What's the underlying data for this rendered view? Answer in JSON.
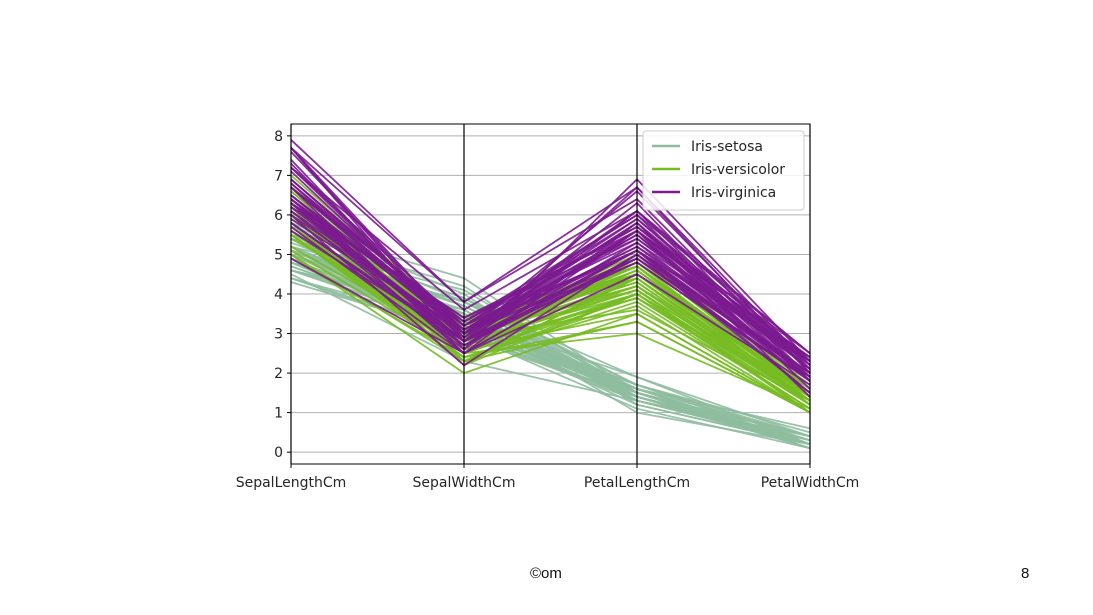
{
  "chart_data": {
    "type": "parallel-coordinates",
    "dimensions": [
      "SepalLengthCm",
      "SepalWidthCm",
      "PetalLengthCm",
      "PetalWidthCm"
    ],
    "ylim": [
      -0.3,
      8.3
    ],
    "yticks": [
      "0",
      "1",
      "2",
      "3",
      "4",
      "5",
      "6",
      "7",
      "8"
    ],
    "grid": true,
    "legend_position": "top-right",
    "series": [
      {
        "name": "Iris-setosa",
        "color": "#8fbc9f",
        "records": [
          [
            5.1,
            3.5,
            1.4,
            0.2
          ],
          [
            4.9,
            3.0,
            1.4,
            0.2
          ],
          [
            4.7,
            3.2,
            1.3,
            0.2
          ],
          [
            4.6,
            3.1,
            1.5,
            0.2
          ],
          [
            5.0,
            3.6,
            1.4,
            0.2
          ],
          [
            5.4,
            3.9,
            1.7,
            0.4
          ],
          [
            4.6,
            3.4,
            1.4,
            0.3
          ],
          [
            5.0,
            3.4,
            1.5,
            0.2
          ],
          [
            4.4,
            2.9,
            1.4,
            0.2
          ],
          [
            4.9,
            3.1,
            1.5,
            0.1
          ],
          [
            5.4,
            3.7,
            1.5,
            0.2
          ],
          [
            4.8,
            3.4,
            1.6,
            0.2
          ],
          [
            4.8,
            3.0,
            1.4,
            0.1
          ],
          [
            4.3,
            3.0,
            1.1,
            0.1
          ],
          [
            5.8,
            4.0,
            1.2,
            0.2
          ],
          [
            5.7,
            4.4,
            1.5,
            0.4
          ],
          [
            5.4,
            3.9,
            1.3,
            0.4
          ],
          [
            5.1,
            3.5,
            1.4,
            0.3
          ],
          [
            5.7,
            3.8,
            1.7,
            0.3
          ],
          [
            5.1,
            3.8,
            1.5,
            0.3
          ],
          [
            5.4,
            3.4,
            1.7,
            0.2
          ],
          [
            5.1,
            3.7,
            1.5,
            0.4
          ],
          [
            4.6,
            3.6,
            1.0,
            0.2
          ],
          [
            5.1,
            3.3,
            1.7,
            0.5
          ],
          [
            4.8,
            3.4,
            1.9,
            0.2
          ],
          [
            5.0,
            3.0,
            1.6,
            0.2
          ],
          [
            5.0,
            3.4,
            1.6,
            0.4
          ],
          [
            5.2,
            3.5,
            1.5,
            0.2
          ],
          [
            5.2,
            3.4,
            1.4,
            0.2
          ],
          [
            4.7,
            3.2,
            1.6,
            0.2
          ],
          [
            4.8,
            3.1,
            1.6,
            0.2
          ],
          [
            5.4,
            3.4,
            1.5,
            0.4
          ],
          [
            5.2,
            4.1,
            1.5,
            0.1
          ],
          [
            5.5,
            4.2,
            1.4,
            0.2
          ],
          [
            4.9,
            3.1,
            1.5,
            0.1
          ],
          [
            5.0,
            3.2,
            1.2,
            0.2
          ],
          [
            5.5,
            3.5,
            1.3,
            0.2
          ],
          [
            4.9,
            3.1,
            1.5,
            0.1
          ],
          [
            4.4,
            3.0,
            1.3,
            0.2
          ],
          [
            5.1,
            3.4,
            1.5,
            0.2
          ],
          [
            5.0,
            3.5,
            1.3,
            0.3
          ],
          [
            4.5,
            2.3,
            1.3,
            0.3
          ],
          [
            4.4,
            3.2,
            1.3,
            0.2
          ],
          [
            5.0,
            3.5,
            1.6,
            0.6
          ],
          [
            5.1,
            3.8,
            1.9,
            0.4
          ],
          [
            4.8,
            3.0,
            1.4,
            0.3
          ],
          [
            5.1,
            3.8,
            1.6,
            0.2
          ],
          [
            4.6,
            3.2,
            1.4,
            0.2
          ],
          [
            5.3,
            3.7,
            1.5,
            0.2
          ],
          [
            5.0,
            3.3,
            1.4,
            0.2
          ]
        ]
      },
      {
        "name": "Iris-versicolor",
        "color": "#77bb22",
        "records": [
          [
            7.0,
            3.2,
            4.7,
            1.4
          ],
          [
            6.4,
            3.2,
            4.5,
            1.5
          ],
          [
            6.9,
            3.1,
            4.9,
            1.5
          ],
          [
            5.5,
            2.3,
            4.0,
            1.3
          ],
          [
            6.5,
            2.8,
            4.6,
            1.5
          ],
          [
            5.7,
            2.8,
            4.5,
            1.3
          ],
          [
            6.3,
            3.3,
            4.7,
            1.6
          ],
          [
            4.9,
            2.4,
            3.3,
            1.0
          ],
          [
            6.6,
            2.9,
            4.6,
            1.3
          ],
          [
            5.2,
            2.7,
            3.9,
            1.4
          ],
          [
            5.0,
            2.0,
            3.5,
            1.0
          ],
          [
            5.9,
            3.0,
            4.2,
            1.5
          ],
          [
            6.0,
            2.2,
            4.0,
            1.0
          ],
          [
            6.1,
            2.9,
            4.7,
            1.4
          ],
          [
            5.6,
            2.9,
            3.6,
            1.3
          ],
          [
            6.7,
            3.1,
            4.4,
            1.4
          ],
          [
            5.6,
            3.0,
            4.5,
            1.5
          ],
          [
            5.8,
            2.7,
            4.1,
            1.0
          ],
          [
            6.2,
            2.2,
            4.5,
            1.5
          ],
          [
            5.6,
            2.5,
            3.9,
            1.1
          ],
          [
            5.9,
            3.2,
            4.8,
            1.8
          ],
          [
            6.1,
            2.8,
            4.0,
            1.3
          ],
          [
            6.3,
            2.5,
            4.9,
            1.5
          ],
          [
            6.1,
            2.8,
            4.7,
            1.2
          ],
          [
            6.4,
            2.9,
            4.3,
            1.3
          ],
          [
            6.6,
            3.0,
            4.4,
            1.4
          ],
          [
            6.8,
            2.8,
            4.8,
            1.4
          ],
          [
            6.7,
            3.0,
            5.0,
            1.7
          ],
          [
            6.0,
            2.9,
            4.5,
            1.5
          ],
          [
            5.7,
            2.6,
            3.5,
            1.0
          ],
          [
            5.5,
            2.4,
            3.8,
            1.1
          ],
          [
            5.5,
            2.4,
            3.7,
            1.0
          ],
          [
            5.8,
            2.7,
            3.9,
            1.2
          ],
          [
            6.0,
            2.7,
            5.1,
            1.6
          ],
          [
            5.4,
            3.0,
            4.5,
            1.5
          ],
          [
            6.0,
            3.4,
            4.5,
            1.6
          ],
          [
            6.7,
            3.1,
            4.7,
            1.5
          ],
          [
            6.3,
            2.3,
            4.4,
            1.3
          ],
          [
            5.6,
            3.0,
            4.1,
            1.3
          ],
          [
            5.5,
            2.5,
            4.0,
            1.3
          ],
          [
            5.5,
            2.6,
            4.4,
            1.2
          ],
          [
            6.1,
            3.0,
            4.6,
            1.4
          ],
          [
            5.8,
            2.6,
            4.0,
            1.2
          ],
          [
            5.0,
            2.3,
            3.3,
            1.0
          ],
          [
            5.6,
            2.7,
            4.2,
            1.3
          ],
          [
            5.7,
            3.0,
            4.2,
            1.2
          ],
          [
            5.7,
            2.9,
            4.2,
            1.3
          ],
          [
            6.2,
            2.9,
            4.3,
            1.3
          ],
          [
            5.1,
            2.5,
            3.0,
            1.1
          ],
          [
            5.7,
            2.8,
            4.1,
            1.3
          ]
        ]
      },
      {
        "name": "Iris-virginica",
        "color": "#7b1b8f",
        "records": [
          [
            6.3,
            3.3,
            6.0,
            2.5
          ],
          [
            5.8,
            2.7,
            5.1,
            1.9
          ],
          [
            7.1,
            3.0,
            5.9,
            2.1
          ],
          [
            6.3,
            2.9,
            5.6,
            1.8
          ],
          [
            6.5,
            3.0,
            5.8,
            2.2
          ],
          [
            7.6,
            3.0,
            6.6,
            2.1
          ],
          [
            4.9,
            2.5,
            4.5,
            1.7
          ],
          [
            7.3,
            2.9,
            6.3,
            1.8
          ],
          [
            6.7,
            2.5,
            5.8,
            1.8
          ],
          [
            7.2,
            3.6,
            6.1,
            2.5
          ],
          [
            6.5,
            3.2,
            5.1,
            2.0
          ],
          [
            6.4,
            2.7,
            5.3,
            1.9
          ],
          [
            6.8,
            3.0,
            5.5,
            2.1
          ],
          [
            5.7,
            2.5,
            5.0,
            2.0
          ],
          [
            5.8,
            2.8,
            5.1,
            2.4
          ],
          [
            6.4,
            3.2,
            5.3,
            2.3
          ],
          [
            6.5,
            3.0,
            5.5,
            1.8
          ],
          [
            7.7,
            3.8,
            6.7,
            2.2
          ],
          [
            7.7,
            2.6,
            6.9,
            2.3
          ],
          [
            6.0,
            2.2,
            5.0,
            1.5
          ],
          [
            6.9,
            3.2,
            5.7,
            2.3
          ],
          [
            5.6,
            2.8,
            4.9,
            2.0
          ],
          [
            7.7,
            2.8,
            6.7,
            2.0
          ],
          [
            6.3,
            2.7,
            4.9,
            1.8
          ],
          [
            6.7,
            3.3,
            5.7,
            2.1
          ],
          [
            7.2,
            3.2,
            6.0,
            1.8
          ],
          [
            6.2,
            2.8,
            4.8,
            1.8
          ],
          [
            6.1,
            3.0,
            4.9,
            1.8
          ],
          [
            6.4,
            2.8,
            5.6,
            2.1
          ],
          [
            7.2,
            3.0,
            5.8,
            1.6
          ],
          [
            7.4,
            2.8,
            6.1,
            1.9
          ],
          [
            7.9,
            3.8,
            6.4,
            2.0
          ],
          [
            6.4,
            2.8,
            5.6,
            2.2
          ],
          [
            6.3,
            2.8,
            5.1,
            1.5
          ],
          [
            6.1,
            2.6,
            5.6,
            1.4
          ],
          [
            7.7,
            3.0,
            6.1,
            2.3
          ],
          [
            6.3,
            3.4,
            5.6,
            2.4
          ],
          [
            6.4,
            3.1,
            5.5,
            1.8
          ],
          [
            6.0,
            3.0,
            4.8,
            1.8
          ],
          [
            6.9,
            3.1,
            5.4,
            2.1
          ],
          [
            6.7,
            3.1,
            5.6,
            2.4
          ],
          [
            6.9,
            3.1,
            5.1,
            2.3
          ],
          [
            5.8,
            2.7,
            5.1,
            1.9
          ],
          [
            6.8,
            3.2,
            5.9,
            2.3
          ],
          [
            6.7,
            3.3,
            5.7,
            2.5
          ],
          [
            6.7,
            3.0,
            5.2,
            2.3
          ],
          [
            6.3,
            2.5,
            5.0,
            1.9
          ],
          [
            6.5,
            3.0,
            5.2,
            2.0
          ],
          [
            6.2,
            3.4,
            5.4,
            2.3
          ],
          [
            5.9,
            3.0,
            5.1,
            1.8
          ]
        ]
      }
    ]
  },
  "footer": {
    "copyright": "©om",
    "page_number": "8"
  }
}
